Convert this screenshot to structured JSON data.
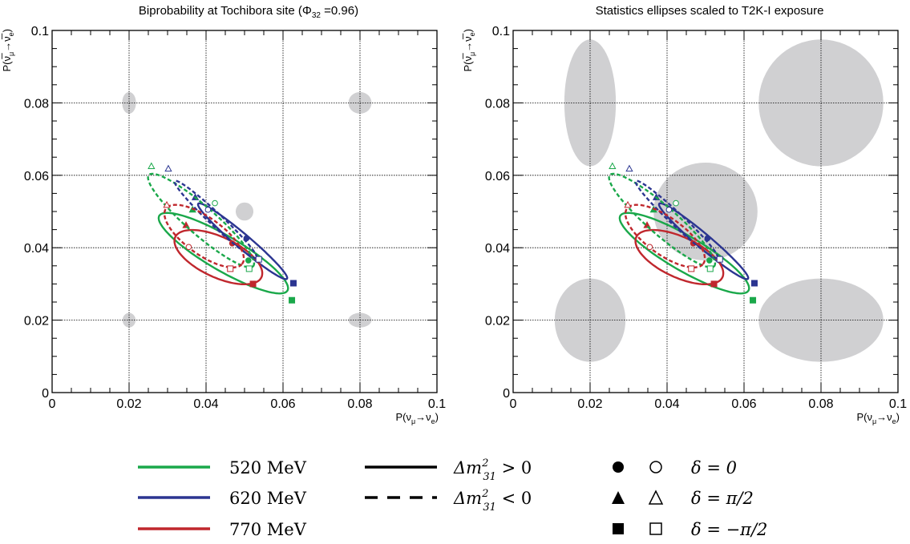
{
  "chart_data": [
    {
      "type": "line",
      "title": "Biprobability at Tochibora site (Φ",
      "title_sub": "32",
      "title_tail": " =0.96)",
      "xlabel_main": "P(ν",
      "xlabel_sub1": "μ",
      "xlabel_mid": "→ν",
      "xlabel_sub2": "e",
      "xlabel_tail": ")",
      "ylabel_main": "P(ν̅",
      "ylabel_sub1": "μ",
      "ylabel_mid": "→ν̅",
      "ylabel_sub2": "e",
      "ylabel_tail": ")",
      "xlim": [
        0,
        0.1
      ],
      "ylim": [
        0,
        0.1
      ],
      "xticks": [
        "0",
        "0.02",
        "0.04",
        "0.06",
        "0.08",
        "0.1"
      ],
      "yticks": [
        "0",
        "0.02",
        "0.04",
        "0.06",
        "0.08",
        "0.1"
      ],
      "grid": true,
      "ellipses": [
        {
          "cx": 0.02,
          "cy": 0.08,
          "rx": 0.0018,
          "ry": 0.003
        },
        {
          "cx": 0.08,
          "cy": 0.08,
          "rx": 0.003,
          "ry": 0.003
        },
        {
          "cx": 0.05,
          "cy": 0.05,
          "rx": 0.0023,
          "ry": 0.0025
        },
        {
          "cx": 0.02,
          "cy": 0.02,
          "rx": 0.0017,
          "ry": 0.002
        },
        {
          "cx": 0.08,
          "cy": 0.02,
          "rx": 0.003,
          "ry": 0.002
        }
      ]
    },
    {
      "type": "line",
      "title": "Statistics ellipses scaled to T2K-I exposure",
      "xlabel_main": "P(ν",
      "xlabel_sub1": "μ",
      "xlabel_mid": "→ν",
      "xlabel_sub2": "e",
      "xlabel_tail": ")",
      "ylabel_main": "P(ν̅",
      "ylabel_sub1": "μ",
      "ylabel_mid": "→ν̅",
      "ylabel_sub2": "e",
      "ylabel_tail": ")",
      "xlim": [
        0,
        0.1
      ],
      "ylim": [
        0,
        0.1
      ],
      "xticks": [
        "0",
        "0.02",
        "0.04",
        "0.06",
        "0.08",
        "0.1"
      ],
      "yticks": [
        "0",
        "0.02",
        "0.04",
        "0.06",
        "0.08",
        "0.1"
      ],
      "grid": true,
      "ellipses": [
        {
          "cx": 0.02,
          "cy": 0.08,
          "rx": 0.0067,
          "ry": 0.0175
        },
        {
          "cx": 0.08,
          "cy": 0.08,
          "rx": 0.0162,
          "ry": 0.0175
        },
        {
          "cx": 0.05,
          "cy": 0.05,
          "rx": 0.0135,
          "ry": 0.0135
        },
        {
          "cx": 0.02,
          "cy": 0.02,
          "rx": 0.0092,
          "ry": 0.0115
        },
        {
          "cx": 0.08,
          "cy": 0.02,
          "rx": 0.0162,
          "ry": 0.0115
        }
      ]
    }
  ],
  "curves": [
    {
      "name": "520 MeV",
      "hierarchy": "normal",
      "color": "#1aa84a",
      "center": [
        0.0445,
        0.0385
      ],
      "a": 0.0196,
      "b": 0.0047,
      "angle_deg": -32,
      "markers": {
        "delta0": [
          0.051,
          0.0365
        ],
        "delta_pi2": [
          0.0365,
          0.0505
        ],
        "delta_mpi2": [
          0.0623,
          0.0255
        ]
      }
    },
    {
      "name": "620 MeV",
      "hierarchy": "normal",
      "color": "#2b3591",
      "center": [
        0.0495,
        0.0418
      ],
      "a": 0.0155,
      "b": 0.0019,
      "angle_deg": -42,
      "markers": {
        "delta0": [
          0.0505,
          0.0426
        ],
        "delta_pi2": [
          0.0372,
          0.0539
        ],
        "delta_mpi2": [
          0.0627,
          0.0302
        ]
      }
    },
    {
      "name": "770 MeV",
      "hierarchy": "normal",
      "color": "#c0272d",
      "center": [
        0.0432,
        0.0374
      ],
      "a": 0.0125,
      "b": 0.0055,
      "angle_deg": -27,
      "markers": {
        "delta0": [
          0.0468,
          0.0412
        ],
        "delta_pi2": [
          0.0348,
          0.0462
        ],
        "delta_mpi2": [
          0.0522,
          0.03
        ]
      }
    },
    {
      "name": "520 MeV",
      "hierarchy": "inverted",
      "color": "#1aa84a",
      "center": [
        0.0387,
        0.0475
      ],
      "a": 0.0185,
      "b": 0.0038,
      "angle_deg": -43,
      "markers": {
        "delta0": [
          0.0423,
          0.0523
        ],
        "delta_pi2": [
          0.0258,
          0.0625
        ],
        "delta_mpi2": [
          0.0512,
          0.0342
        ]
      }
    },
    {
      "name": "620 MeV",
      "hierarchy": "inverted",
      "color": "#2b3591",
      "center": [
        0.0425,
        0.0478
      ],
      "a": 0.015,
      "b": 0.0017,
      "angle_deg": -45,
      "markers": {
        "delta0": [
          0.0405,
          0.0505
        ],
        "delta_pi2": [
          0.0302,
          0.0618
        ],
        "delta_mpi2": [
          0.0537,
          0.0368
        ]
      }
    },
    {
      "name": "770 MeV",
      "hierarchy": "inverted",
      "color": "#c0272d",
      "center": [
        0.0395,
        0.0432
      ],
      "a": 0.0125,
      "b": 0.005,
      "angle_deg": -38,
      "markers": {
        "delta0": [
          0.0355,
          0.0402
        ],
        "delta_pi2": [
          0.0298,
          0.0518
        ],
        "delta_mpi2": [
          0.0463,
          0.0342
        ]
      }
    }
  ],
  "legend": {
    "energies": [
      {
        "label": "520 MeV",
        "color": "#1aa84a"
      },
      {
        "label": "620 MeV",
        "color": "#2b3591"
      },
      {
        "label": "770 MeV",
        "color": "#c0272d"
      }
    ],
    "hierarchy": [
      {
        "label_pre": "Δm",
        "label_sup": "2",
        "label_sub": "31",
        "label_post": " > 0",
        "style": "solid"
      },
      {
        "label_pre": "Δm",
        "label_sup": "2",
        "label_sub": "31",
        "label_post": " < 0",
        "style": "dashed"
      }
    ],
    "phases": [
      {
        "label": "δ = 0",
        "marker": "circle"
      },
      {
        "label": "δ = π/2",
        "marker": "triangle"
      },
      {
        "label": "δ = −π/2",
        "marker": "square"
      }
    ]
  },
  "colors": {
    "ellipse": "#d0d0d2",
    "grid": "#000000"
  }
}
